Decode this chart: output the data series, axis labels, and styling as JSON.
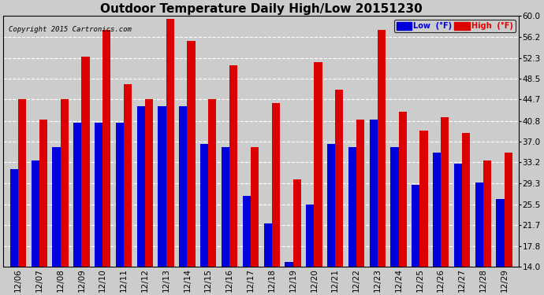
{
  "title": "Outdoor Temperature Daily High/Low 20151230",
  "copyright": "Copyright 2015 Cartronics.com",
  "categories": [
    "12/06",
    "12/07",
    "12/08",
    "12/09",
    "12/10",
    "12/11",
    "12/12",
    "12/13",
    "12/14",
    "12/15",
    "12/16",
    "12/17",
    "12/18",
    "12/19",
    "12/20",
    "12/21",
    "12/22",
    "12/23",
    "12/24",
    "12/25",
    "12/26",
    "12/27",
    "12/28",
    "12/29"
  ],
  "low_values": [
    32.0,
    33.5,
    36.0,
    40.5,
    40.5,
    40.5,
    43.5,
    43.5,
    43.5,
    36.5,
    36.0,
    27.0,
    22.0,
    15.0,
    25.5,
    36.5,
    36.0,
    41.0,
    36.0,
    29.0,
    35.0,
    33.0,
    29.5,
    26.5
  ],
  "high_values": [
    44.7,
    41.0,
    44.7,
    52.5,
    57.5,
    47.5,
    44.7,
    59.5,
    55.5,
    44.7,
    51.0,
    36.0,
    44.0,
    30.0,
    51.5,
    46.5,
    41.0,
    57.5,
    42.5,
    39.0,
    41.5,
    38.5,
    33.5,
    35.0
  ],
  "ylim": [
    14.0,
    60.0
  ],
  "yticks": [
    14.0,
    17.8,
    21.7,
    25.5,
    29.3,
    33.2,
    37.0,
    40.8,
    44.7,
    48.5,
    52.3,
    56.2,
    60.0
  ],
  "ytick_labels": [
    "14.0",
    "17.8",
    "21.7",
    "25.5",
    "29.3",
    "33.2",
    "37.0",
    "40.8",
    "44.7",
    "48.5",
    "52.3",
    "56.2",
    "60.0"
  ],
  "low_color": "#0000dd",
  "high_color": "#dd0000",
  "bg_color": "#cccccc",
  "grid_color": "#ffffff",
  "title_fontsize": 11,
  "legend_low_label": "Low  (°F)",
  "legend_high_label": "High  (°F)"
}
